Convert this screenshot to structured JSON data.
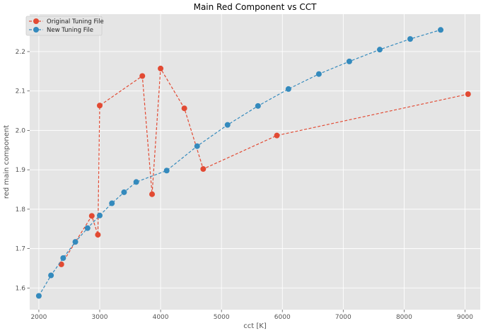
{
  "chart_data": {
    "type": "line",
    "title": "Main Red Component vs CCT",
    "xlabel": "cct [K]",
    "ylabel": "red main component",
    "xlim": [
      1850,
      9250
    ],
    "ylim": [
      1.545,
      2.295
    ],
    "xticks": [
      2000,
      3000,
      4000,
      5000,
      6000,
      7000,
      8000,
      9000
    ],
    "yticks": [
      1.6,
      1.7,
      1.8,
      1.9,
      2.0,
      2.1,
      2.2
    ],
    "grid": true,
    "legend_position": "top-left",
    "series": [
      {
        "name": "Original Tuning File",
        "color": "#e24a33",
        "line_style": "dashed",
        "marker": "circle",
        "x": [
          2370,
          2870,
          2970,
          3000,
          3700,
          3860,
          4000,
          4390,
          4700,
          5910,
          9050
        ],
        "y": [
          1.66,
          1.783,
          1.735,
          2.063,
          2.138,
          1.838,
          2.157,
          2.056,
          1.902,
          1.987,
          2.092
        ]
      },
      {
        "name": "New Tuning File",
        "color": "#348abd",
        "line_style": "dashed",
        "marker": "circle",
        "x": [
          2000,
          2200,
          2400,
          2600,
          2800,
          3000,
          3200,
          3400,
          3600,
          4100,
          4600,
          5100,
          5600,
          6100,
          6600,
          7100,
          7600,
          8100,
          8600
        ],
        "y": [
          1.58,
          1.632,
          1.676,
          1.717,
          1.752,
          1.784,
          1.815,
          1.843,
          1.869,
          1.898,
          1.96,
          2.014,
          2.062,
          2.105,
          2.143,
          2.175,
          2.205,
          2.232,
          2.255
        ]
      }
    ]
  }
}
